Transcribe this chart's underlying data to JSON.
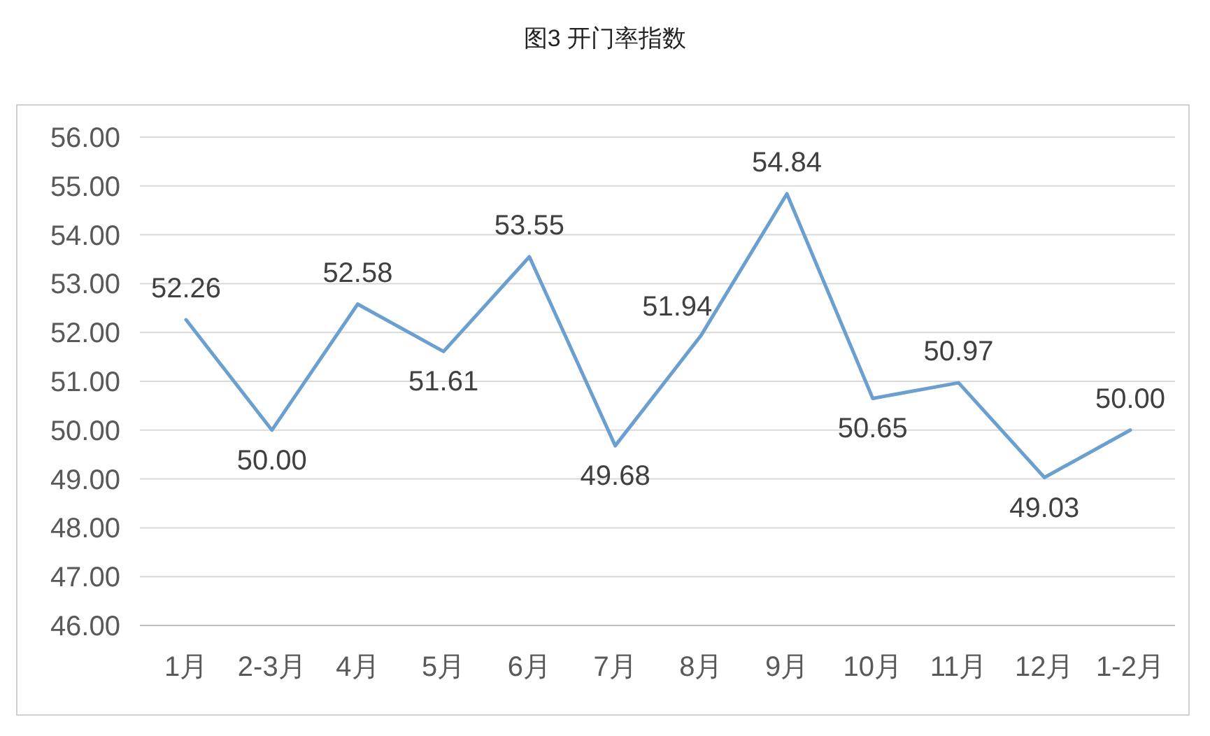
{
  "chart_data": {
    "type": "line",
    "title": "图3 开门率指数",
    "categories": [
      "1月",
      "2-3月",
      "4月",
      "5月",
      "6月",
      "7月",
      "8月",
      "9月",
      "10月",
      "11月",
      "12月",
      "1-2月"
    ],
    "series": [
      {
        "color": "#6a9fcf",
        "values": [
          52.26,
          50.0,
          52.58,
          51.61,
          53.55,
          49.68,
          51.94,
          54.84,
          50.65,
          50.97,
          49.03,
          50.0
        ],
        "value_labels": [
          "52.26",
          "50.00",
          "52.58",
          "51.61",
          "53.55",
          "49.68",
          "51.94",
          "54.84",
          "50.65",
          "50.97",
          "49.03",
          "50.00"
        ]
      }
    ],
    "ylim": [
      46,
      56
    ],
    "yticks": [
      {
        "value": 46,
        "label": "46.00"
      },
      {
        "value": 47,
        "label": "47.00"
      },
      {
        "value": 48,
        "label": "48.00"
      },
      {
        "value": 49,
        "label": "49.00"
      },
      {
        "value": 50,
        "label": "50.00"
      },
      {
        "value": 51,
        "label": "51.00"
      },
      {
        "value": 52,
        "label": "52.00"
      },
      {
        "value": 53,
        "label": "53.00"
      },
      {
        "value": 54,
        "label": "54.00"
      },
      {
        "value": 55,
        "label": "55.00"
      },
      {
        "value": 56,
        "label": "56.00"
      }
    ],
    "grid": "y",
    "marker": "none",
    "line_style": "solid"
  }
}
